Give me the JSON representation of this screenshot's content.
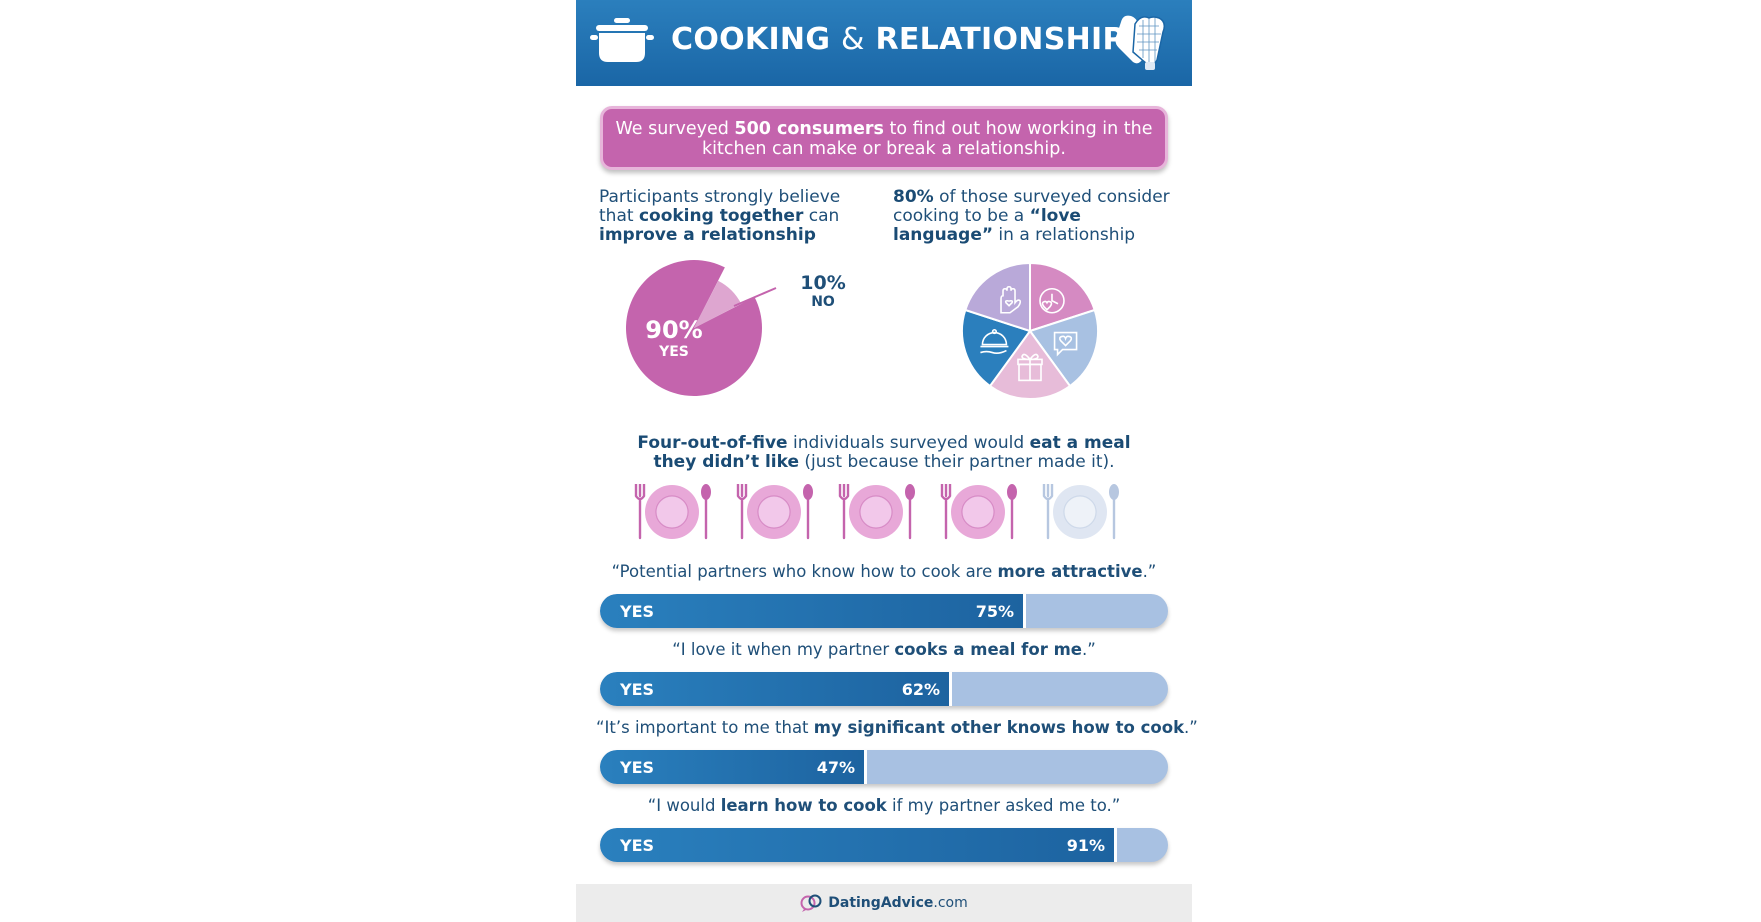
{
  "header": {
    "title_part1": "COOKING",
    "title_amp": "&",
    "title_part2": "RELATIONSHIPS"
  },
  "intro": {
    "pre": "We surveyed ",
    "bold": "500 consumers",
    "post": " to find out how working in the kitchen can make or break a relationship."
  },
  "section1": {
    "pre": "Participants strongly believe that ",
    "bold1": "cooking together",
    "mid": " can ",
    "bold2": "improve a relationship"
  },
  "section2": {
    "bold1": "80%",
    "pre": " of those surveyed consider cooking to be a ",
    "bold2": "“love language”",
    "post": " in a relationship"
  },
  "meals": {
    "bold1": "Four-out-of-five",
    "mid": " individuals surveyed would ",
    "bold2": "eat a meal they didn’t like",
    "post": " (just because their partner made it).",
    "liked": 4,
    "total": 5
  },
  "chart_data": [
    {
      "type": "pie",
      "title": "Participants strongly believe that cooking together can improve a relationship",
      "slices": [
        {
          "label": "YES",
          "value": 90,
          "display": "90%",
          "color": "#c464ad"
        },
        {
          "label": "NO",
          "value": 10,
          "display": "10%",
          "color": "#dea6d0"
        }
      ]
    },
    {
      "type": "pie",
      "title": "80% of those surveyed consider cooking to be a “love language” in a relationship",
      "slices": [
        {
          "icon": "clock-heart-icon",
          "value": 20,
          "color": "#d58ac2"
        },
        {
          "icon": "chat-heart-icon",
          "value": 20,
          "color": "#a8c1e2"
        },
        {
          "icon": "gift-icon",
          "value": 20,
          "color": "#e7bcd9"
        },
        {
          "icon": "serving-cloche-icon",
          "value": 20,
          "color": "#2b7fbd"
        },
        {
          "icon": "heart-hand-icon",
          "value": 20,
          "color": "#b9a9d9"
        }
      ]
    },
    {
      "type": "bar",
      "orientation": "horizontal",
      "xlim": [
        0,
        100
      ],
      "series": [
        {
          "question_pre": "“Potential partners who know how to cook are ",
          "question_bold": "more attractive",
          "question_post": ".”",
          "label": "YES",
          "value": 75,
          "display": "75%"
        },
        {
          "question_pre": "“I love it when my partner ",
          "question_bold": "cooks a meal for me",
          "question_post": ".”",
          "label": "YES",
          "value": 62,
          "display": "62%"
        },
        {
          "question_pre": "“It’s important to me that ",
          "question_bold": "my significant other knows how to cook",
          "question_post": ".”",
          "label": "YES",
          "value": 47,
          "display": "47%"
        },
        {
          "question_pre": "“I would ",
          "question_bold": "learn how to cook",
          "question_post": " if my partner asked me to.”",
          "label": "YES",
          "value": 91,
          "display": "91%"
        }
      ]
    }
  ],
  "colors": {
    "header_blue": "#1a66a6",
    "pink": "#c464ad",
    "light_pink": "#dea6d0",
    "navy_text": "#1f4f78",
    "bar_track": "#a8c1e2"
  },
  "footer": {
    "brand1": "Dating",
    "brand2": "Advice",
    "brand3": ".com"
  }
}
